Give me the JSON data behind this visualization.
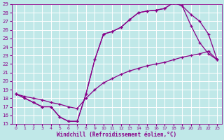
{
  "xlabel": "Windchill (Refroidissement éolien,°C)",
  "bg_color": "#c0e8e8",
  "grid_color": "#ffffff",
  "line_color": "#880088",
  "xlim": [
    -0.5,
    23.5
  ],
  "ylim": [
    15,
    29
  ],
  "xticks": [
    0,
    1,
    2,
    3,
    4,
    5,
    6,
    7,
    8,
    9,
    10,
    11,
    12,
    13,
    14,
    15,
    16,
    17,
    18,
    19,
    20,
    21,
    22,
    23
  ],
  "yticks": [
    15,
    16,
    17,
    18,
    19,
    20,
    21,
    22,
    23,
    24,
    25,
    26,
    27,
    28,
    29
  ],
  "line1_x": [
    0,
    1,
    2,
    3,
    4,
    5,
    6,
    7,
    8,
    9,
    10,
    11,
    12,
    13,
    14,
    15,
    16,
    17,
    18,
    19,
    20,
    21,
    22,
    23
  ],
  "line1_y": [
    18.5,
    18.0,
    17.5,
    17.0,
    17.0,
    15.8,
    15.3,
    15.3,
    18.5,
    22.5,
    25.5,
    25.8,
    26.3,
    27.2,
    28.0,
    28.2,
    28.3,
    28.5,
    29.2,
    28.8,
    26.5,
    24.5,
    23.2,
    22.5
  ],
  "line2_x": [
    0,
    1,
    2,
    3,
    4,
    5,
    6,
    7,
    8,
    9,
    10,
    11,
    12,
    13,
    14,
    15,
    16,
    17,
    18,
    19,
    20,
    21,
    22,
    23
  ],
  "line2_y": [
    18.5,
    18.2,
    18.0,
    17.8,
    17.5,
    17.3,
    17.0,
    16.8,
    18.0,
    19.0,
    19.8,
    20.3,
    20.8,
    21.2,
    21.5,
    21.8,
    22.0,
    22.2,
    22.5,
    22.8,
    23.0,
    23.2,
    23.5,
    22.5
  ],
  "line3_x": [
    0,
    1,
    2,
    3,
    4,
    5,
    6,
    7,
    8,
    9,
    10,
    11,
    12,
    13,
    14,
    15,
    16,
    17,
    18,
    19,
    20,
    21,
    22,
    23
  ],
  "line3_y": [
    18.5,
    18.0,
    17.5,
    17.0,
    17.0,
    15.8,
    15.3,
    15.3,
    18.5,
    22.5,
    25.5,
    25.8,
    26.3,
    27.2,
    28.0,
    28.2,
    28.3,
    28.5,
    29.2,
    28.8,
    27.8,
    27.0,
    25.5,
    22.5
  ]
}
